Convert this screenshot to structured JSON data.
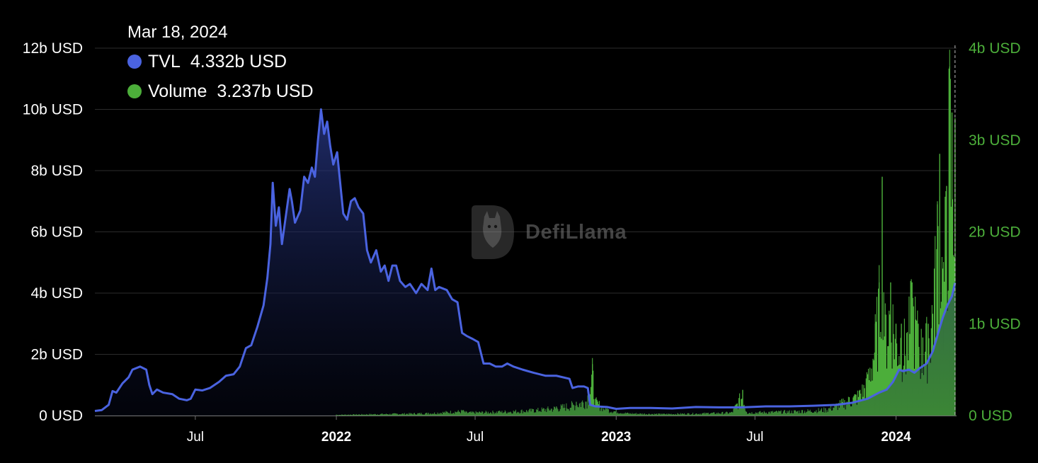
{
  "tooltip": {
    "date": "Mar 18, 2024",
    "series": [
      {
        "name": "TVL",
        "value": "4.332b USD",
        "color": "#4a63e0"
      },
      {
        "name": "Volume",
        "value": "3.237b USD",
        "color": "#4cae3a"
      }
    ]
  },
  "watermark": {
    "text": "DefiLlama",
    "icon": "llama-logo-icon"
  },
  "chart_data": {
    "type": "area",
    "title": "",
    "x_ticks": [
      {
        "label": "Jul",
        "date": "2021-07-01",
        "bold": false
      },
      {
        "label": "2022",
        "date": "2022-01-01",
        "bold": true
      },
      {
        "label": "Jul",
        "date": "2022-07-01",
        "bold": false
      },
      {
        "label": "2023",
        "date": "2023-01-01",
        "bold": true
      },
      {
        "label": "Jul",
        "date": "2023-07-01",
        "bold": false
      },
      {
        "label": "2024",
        "date": "2024-01-01",
        "bold": true
      }
    ],
    "x_range": [
      "2021-02-20",
      "2024-03-20"
    ],
    "y_left": {
      "ticks": [
        "0 USD",
        "2b USD",
        "4b USD",
        "6b USD",
        "8b USD",
        "10b USD",
        "12b USD"
      ],
      "range": [
        0,
        12
      ],
      "unit": "b USD"
    },
    "y_right": {
      "ticks": [
        "0 USD",
        "1b USD",
        "2b USD",
        "3b USD",
        "4b USD"
      ],
      "range": [
        0,
        4
      ],
      "unit": "b USD",
      "color": "#4cae3a"
    },
    "grid": true,
    "series": [
      {
        "name": "TVL",
        "axis": "left",
        "color": "#4a63e0",
        "points": [
          [
            "2021-02-20",
            0.15
          ],
          [
            "2021-03-01",
            0.18
          ],
          [
            "2021-03-10",
            0.35
          ],
          [
            "2021-03-15",
            0.8
          ],
          [
            "2021-03-20",
            0.75
          ],
          [
            "2021-03-28",
            1.05
          ],
          [
            "2021-04-05",
            1.25
          ],
          [
            "2021-04-10",
            1.5
          ],
          [
            "2021-04-20",
            1.6
          ],
          [
            "2021-04-28",
            1.5
          ],
          [
            "2021-05-02",
            1.0
          ],
          [
            "2021-05-06",
            0.7
          ],
          [
            "2021-05-12",
            0.85
          ],
          [
            "2021-05-20",
            0.75
          ],
          [
            "2021-06-01",
            0.7
          ],
          [
            "2021-06-10",
            0.55
          ],
          [
            "2021-06-20",
            0.5
          ],
          [
            "2021-06-25",
            0.55
          ],
          [
            "2021-07-01",
            0.85
          ],
          [
            "2021-07-10",
            0.82
          ],
          [
            "2021-07-20",
            0.9
          ],
          [
            "2021-08-01",
            1.1
          ],
          [
            "2021-08-10",
            1.3
          ],
          [
            "2021-08-20",
            1.35
          ],
          [
            "2021-08-28",
            1.6
          ],
          [
            "2021-09-05",
            2.2
          ],
          [
            "2021-09-12",
            2.3
          ],
          [
            "2021-09-20",
            2.9
          ],
          [
            "2021-09-28",
            3.6
          ],
          [
            "2021-10-03",
            4.5
          ],
          [
            "2021-10-07",
            5.6
          ],
          [
            "2021-10-10",
            7.6
          ],
          [
            "2021-10-14",
            6.2
          ],
          [
            "2021-10-18",
            6.8
          ],
          [
            "2021-10-22",
            5.6
          ],
          [
            "2021-10-27",
            6.5
          ],
          [
            "2021-11-01",
            7.4
          ],
          [
            "2021-11-04",
            7.0
          ],
          [
            "2021-11-08",
            6.3
          ],
          [
            "2021-11-15",
            6.7
          ],
          [
            "2021-11-20",
            7.8
          ],
          [
            "2021-11-25",
            7.6
          ],
          [
            "2021-11-30",
            8.1
          ],
          [
            "2021-12-04",
            7.8
          ],
          [
            "2021-12-08",
            9.0
          ],
          [
            "2021-12-12",
            10.0
          ],
          [
            "2021-12-16",
            9.2
          ],
          [
            "2021-12-20",
            9.6
          ],
          [
            "2021-12-24",
            8.8
          ],
          [
            "2021-12-28",
            8.2
          ],
          [
            "2022-01-02",
            8.6
          ],
          [
            "2022-01-06",
            7.6
          ],
          [
            "2022-01-10",
            6.6
          ],
          [
            "2022-01-15",
            6.4
          ],
          [
            "2022-01-20",
            7.0
          ],
          [
            "2022-01-25",
            7.1
          ],
          [
            "2022-01-30",
            6.8
          ],
          [
            "2022-02-05",
            6.6
          ],
          [
            "2022-02-10",
            5.4
          ],
          [
            "2022-02-15",
            5.0
          ],
          [
            "2022-02-22",
            5.4
          ],
          [
            "2022-02-28",
            4.7
          ],
          [
            "2022-03-05",
            4.9
          ],
          [
            "2022-03-10",
            4.4
          ],
          [
            "2022-03-15",
            4.9
          ],
          [
            "2022-03-20",
            4.9
          ],
          [
            "2022-03-25",
            4.4
          ],
          [
            "2022-04-01",
            4.2
          ],
          [
            "2022-04-07",
            4.3
          ],
          [
            "2022-04-15",
            4.0
          ],
          [
            "2022-04-22",
            4.3
          ],
          [
            "2022-04-30",
            4.1
          ],
          [
            "2022-05-05",
            4.8
          ],
          [
            "2022-05-10",
            4.1
          ],
          [
            "2022-05-15",
            4.2
          ],
          [
            "2022-05-25",
            4.1
          ],
          [
            "2022-06-01",
            3.8
          ],
          [
            "2022-06-08",
            3.7
          ],
          [
            "2022-06-14",
            2.7
          ],
          [
            "2022-06-20",
            2.6
          ],
          [
            "2022-06-28",
            2.5
          ],
          [
            "2022-07-05",
            2.4
          ],
          [
            "2022-07-12",
            1.7
          ],
          [
            "2022-07-20",
            1.7
          ],
          [
            "2022-07-28",
            1.6
          ],
          [
            "2022-08-05",
            1.6
          ],
          [
            "2022-08-12",
            1.7
          ],
          [
            "2022-08-20",
            1.6
          ],
          [
            "2022-09-01",
            1.5
          ],
          [
            "2022-09-15",
            1.4
          ],
          [
            "2022-10-01",
            1.3
          ],
          [
            "2022-10-15",
            1.3
          ],
          [
            "2022-11-01",
            1.2
          ],
          [
            "2022-11-05",
            0.9
          ],
          [
            "2022-11-12",
            0.95
          ],
          [
            "2022-11-20",
            0.95
          ],
          [
            "2022-11-25",
            0.9
          ],
          [
            "2022-11-28",
            0.35
          ],
          [
            "2022-12-05",
            0.3
          ],
          [
            "2022-12-20",
            0.28
          ],
          [
            "2023-01-01",
            0.22
          ],
          [
            "2023-01-20",
            0.25
          ],
          [
            "2023-02-15",
            0.25
          ],
          [
            "2023-03-15",
            0.23
          ],
          [
            "2023-04-15",
            0.28
          ],
          [
            "2023-05-15",
            0.27
          ],
          [
            "2023-06-15",
            0.27
          ],
          [
            "2023-07-15",
            0.3
          ],
          [
            "2023-08-15",
            0.3
          ],
          [
            "2023-09-15",
            0.32
          ],
          [
            "2023-10-15",
            0.35
          ],
          [
            "2023-11-05",
            0.42
          ],
          [
            "2023-11-25",
            0.55
          ],
          [
            "2023-12-10",
            0.75
          ],
          [
            "2023-12-20",
            0.85
          ],
          [
            "2023-12-28",
            1.1
          ],
          [
            "2024-01-05",
            1.5
          ],
          [
            "2024-01-10",
            1.45
          ],
          [
            "2024-01-18",
            1.5
          ],
          [
            "2024-01-25",
            1.4
          ],
          [
            "2024-02-01",
            1.55
          ],
          [
            "2024-02-10",
            1.7
          ],
          [
            "2024-02-18",
            2.1
          ],
          [
            "2024-02-25",
            2.7
          ],
          [
            "2024-03-02",
            3.2
          ],
          [
            "2024-03-08",
            3.6
          ],
          [
            "2024-03-14",
            3.9
          ],
          [
            "2024-03-18",
            4.332
          ]
        ]
      },
      {
        "name": "Volume",
        "axis": "right",
        "color": "#4cae3a",
        "points": [
          [
            "2022-01-01",
            0.01
          ],
          [
            "2022-03-01",
            0.02
          ],
          [
            "2022-05-01",
            0.03
          ],
          [
            "2022-06-15",
            0.06
          ],
          [
            "2022-06-20",
            0.04
          ],
          [
            "2022-08-01",
            0.05
          ],
          [
            "2022-09-15",
            0.07
          ],
          [
            "2022-10-15",
            0.1
          ],
          [
            "2022-11-10",
            0.15
          ],
          [
            "2022-11-25",
            0.22
          ],
          [
            "2022-12-01",
            0.56
          ],
          [
            "2022-12-05",
            0.18
          ],
          [
            "2022-12-20",
            0.08
          ],
          [
            "2023-01-15",
            0.03
          ],
          [
            "2023-03-01",
            0.02
          ],
          [
            "2023-05-01",
            0.03
          ],
          [
            "2023-06-01",
            0.04
          ],
          [
            "2023-06-15",
            0.28
          ],
          [
            "2023-06-20",
            0.04
          ],
          [
            "2023-08-01",
            0.05
          ],
          [
            "2023-09-01",
            0.06
          ],
          [
            "2023-10-01",
            0.08
          ],
          [
            "2023-11-01",
            0.2
          ],
          [
            "2023-11-15",
            0.28
          ],
          [
            "2023-11-25",
            0.45
          ],
          [
            "2023-12-05",
            1.0
          ],
          [
            "2023-12-10",
            1.45
          ],
          [
            "2023-12-14",
            2.6
          ],
          [
            "2023-12-18",
            1.1
          ],
          [
            "2023-12-25",
            1.45
          ],
          [
            "2024-01-01",
            1.0
          ],
          [
            "2024-01-08",
            1.0
          ],
          [
            "2024-01-15",
            0.9
          ],
          [
            "2024-01-22",
            1.45
          ],
          [
            "2024-01-30",
            1.0
          ],
          [
            "2024-02-05",
            0.85
          ],
          [
            "2024-02-12",
            1.0
          ],
          [
            "2024-02-20",
            1.6
          ],
          [
            "2024-02-24",
            2.3
          ],
          [
            "2024-02-27",
            2.85
          ],
          [
            "2024-03-02",
            1.6
          ],
          [
            "2024-03-07",
            2.5
          ],
          [
            "2024-03-11",
            3.8
          ],
          [
            "2024-03-14",
            3.3
          ],
          [
            "2024-03-18",
            3.237
          ]
        ]
      }
    ]
  }
}
